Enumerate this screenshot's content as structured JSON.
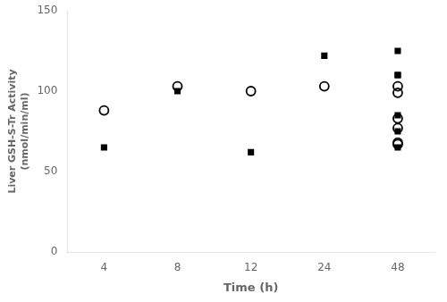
{
  "chart_data": {
    "type": "scatter",
    "xlabel": "Time (h)",
    "ylabel": [
      "Liver GSH-S-Tr Activity",
      "(nmol/min/ml)"
    ],
    "categories": [
      "4",
      "8",
      "12",
      "24",
      "48"
    ],
    "series": [
      {
        "marker": "square",
        "color": "#000000",
        "values": [
          [
            65,
            100
          ],
          [
            62,
            122
          ],
          [
            65,
            75
          ],
          [
            85,
            110
          ],
          [
            110,
            125
          ]
        ]
      },
      {
        "marker": "open_circle",
        "color": "#000000",
        "values": [
          [
            88,
            103
          ],
          [
            100,
            103
          ],
          [
            67,
            68
          ],
          [
            99,
            103
          ],
          [
            77,
            83
          ]
        ]
      }
    ],
    "ylim": [
      0,
      150
    ],
    "yticks": [
      0,
      50,
      100,
      150
    ],
    "grid": false
  }
}
